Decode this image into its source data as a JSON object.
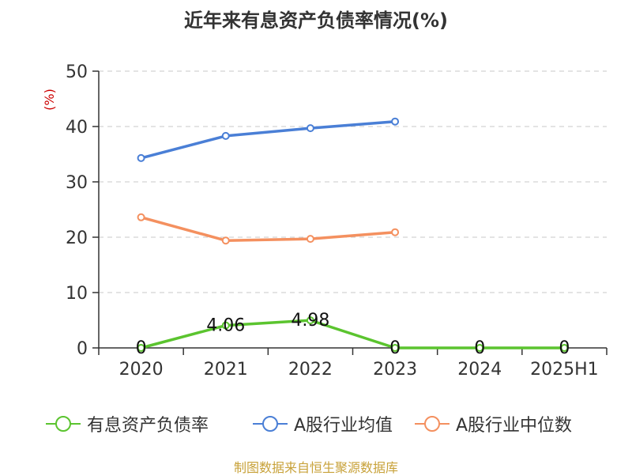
{
  "chart_data": {
    "type": "line",
    "title": "近年来有息资产负债率情况(%)",
    "ylabel": "(%)",
    "xlabel": "",
    "categories": [
      "2020",
      "2021",
      "2022",
      "2023",
      "2024",
      "2025H1"
    ],
    "ylim": [
      0,
      50
    ],
    "yticks": [
      0,
      10,
      20,
      30,
      40,
      50
    ],
    "grid": true,
    "legend_position": "bottom",
    "series": [
      {
        "name": "有息资产负债率",
        "color": "#5bc42f",
        "values": [
          0,
          4.06,
          4.98,
          0,
          0,
          0
        ],
        "labels": [
          "0",
          "4.06",
          "4.98",
          "0",
          "0",
          "0"
        ]
      },
      {
        "name": "A股行业均值",
        "color": "#4a7fd6",
        "values": [
          34.3,
          38.3,
          39.7,
          40.9,
          null,
          null
        ]
      },
      {
        "name": "A股行业中位数",
        "color": "#f4905f",
        "values": [
          23.6,
          19.4,
          19.7,
          20.9,
          null,
          null
        ]
      }
    ]
  },
  "footer": {
    "source": "制图数据来自恒生聚源数据库"
  }
}
